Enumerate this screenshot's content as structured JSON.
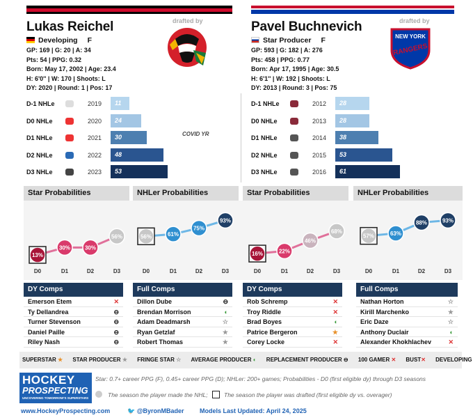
{
  "players": [
    {
      "name": "Lukas Reichel",
      "status": "Developing",
      "position": "F",
      "line1": "GP: 169 | G: 20 | A: 34",
      "line2": "Pts: 54 | PPG: 0.32",
      "line3": "Born: May 17, 2002 | Age: 23.4",
      "line4": "H: 6'0'' | W: 170 | Shoots: L",
      "line5": "DY: 2020 | Round: 1 | Pos: 17",
      "drafted_by": "drafted by",
      "team": "Chicago Blackhawks",
      "years": [
        {
          "label": "D-1 NHLe",
          "year": "2019",
          "value": "11"
        },
        {
          "label": "D0 NHLe",
          "year": "2020",
          "value": "24"
        },
        {
          "label": "D1 NHLe",
          "year": "2021",
          "value": "30"
        },
        {
          "label": "D2 NHLe",
          "year": "2022",
          "value": "48"
        },
        {
          "label": "D3 NHLe",
          "year": "2023",
          "value": "53"
        }
      ],
      "annotation": "COVID YR",
      "star_title": "Star Probabilities",
      "nhl_title": "NHLer Probabilities",
      "star_vals": [
        "13%",
        "30%",
        "30%",
        "56%"
      ],
      "nhl_vals": [
        "56%",
        "61%",
        "75%",
        "93%"
      ],
      "dy_title": "DY Comps",
      "full_title": "Full Comps",
      "dy_comps": [
        "Emerson Etem",
        "Ty Dellandrea",
        "Turner Stevenson",
        "Daniel Paille",
        "Riley Nash"
      ],
      "full_comps": [
        "Dillon Dube",
        "Brendan Morrison",
        "Adam Deadmarsh",
        "Ryan Getzlaf",
        "Robert Thomas"
      ]
    },
    {
      "name": "Pavel Buchnevich",
      "status": "Star Producer",
      "position": "F",
      "line1": "GP: 593 | G: 182 | A: 276",
      "line2": "Pts: 458 | PPG: 0.77",
      "line3": "Born: Apr 17, 1995 | Age: 30.5",
      "line4": "H: 6'1'' | W: 192 | Shoots: L",
      "line5": "DY: 2013 | Round: 3 | Pos: 75",
      "drafted_by": "drafted by",
      "team": "New York Rangers",
      "years": [
        {
          "label": "D-1 NHLe",
          "year": "2012",
          "value": "28"
        },
        {
          "label": "D0 NHLe",
          "year": "2013",
          "value": "28"
        },
        {
          "label": "D1 NHLe",
          "year": "2014",
          "value": "38"
        },
        {
          "label": "D2 NHLe",
          "year": "2015",
          "value": "53"
        },
        {
          "label": "D3 NHLe",
          "year": "2016",
          "value": "61"
        }
      ],
      "star_title": "Star Probabilities",
      "nhl_title": "NHLer Probabilities",
      "star_vals": [
        "16%",
        "22%",
        "46%",
        "68%"
      ],
      "nhl_vals": [
        "57%",
        "63%",
        "88%",
        "93%"
      ],
      "dy_title": "DY Comps",
      "full_title": "Full Comps",
      "dy_comps": [
        "Rob Schremp",
        "Troy Riddle",
        "Brad Boyes",
        "Patrice Bergeron",
        "Corey Locke"
      ],
      "full_comps": [
        "Nathan Horton",
        "Kirill Marchenko",
        "Eric Daze",
        "Anthony Duclair",
        "Alexander Khokhlachev"
      ]
    }
  ],
  "x_labels": [
    "D0",
    "D1",
    "D2",
    "D3"
  ],
  "legend": [
    "SUPERSTAR",
    "STAR PRODUCER",
    "FRINGE STAR",
    "AVERAGE PRODUCER",
    "REPLACEMENT PRODUCER",
    "100 GAMER",
    "BUST",
    "DEVELOPING"
  ],
  "footer": {
    "logo_line1": "HOCKEY",
    "logo_line2": "PROSPECTING",
    "logo_tag": "UNCOVERING TOMORROW'S SUPERSTARS",
    "note1": "Star: 0.7+ career PPG (F), 0.45+ career PPG (D); NHLer: 200+ games; Probabilities - D0 (first eligible dy) through D3 seasons",
    "note2a": "The season the player made the NHL;",
    "note2b": "The season the player was drafted (first eligible dy vs. overager)",
    "site": "www.HockeyProspecting.com",
    "handle": "@ByronMBader",
    "updated": "Models Last Updated: April 24, 2025"
  }
}
